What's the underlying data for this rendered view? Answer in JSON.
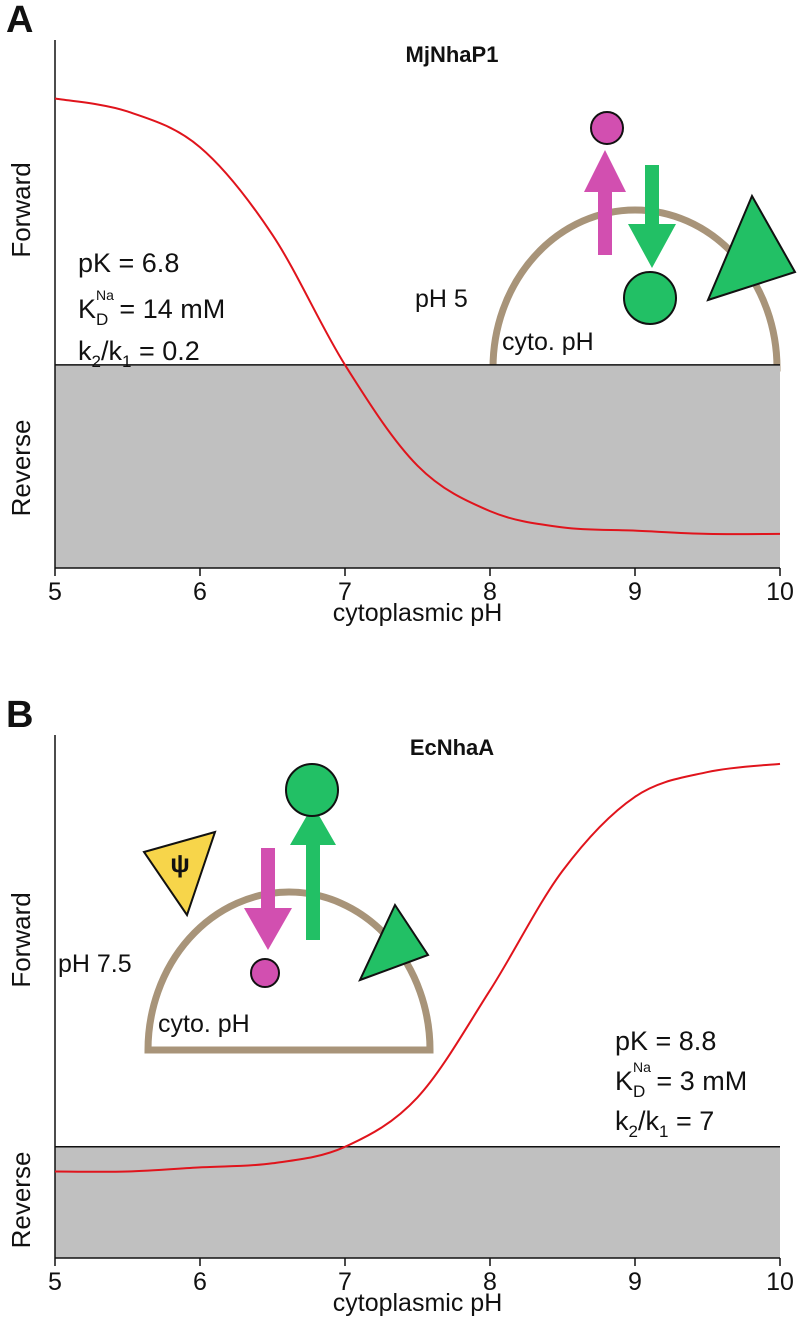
{
  "chart_data": [
    {
      "type": "line",
      "panel": "A",
      "title": "MjNhaP1",
      "x_label": "cytoplasmic pH",
      "y_labels": [
        "Forward",
        "Reverse"
      ],
      "x": [
        5,
        5.5,
        6,
        6.5,
        7,
        7.5,
        8,
        8.5,
        9,
        9.5,
        10
      ],
      "series": [
        {
          "color": "#e0141c",
          "values": [
            0.82,
            0.78,
            0.67,
            0.4,
            0,
            -0.31,
            -0.45,
            -0.5,
            -0.51,
            -0.52,
            -0.52
          ]
        }
      ],
      "xlim": [
        5,
        10
      ],
      "xticks": [
        5,
        6,
        7,
        8,
        9,
        10
      ],
      "ylim": [
        -0.625,
        1
      ],
      "reverse_fill": "#c0c0c0",
      "annotations": [
        [
          {
            "text": "pK = 6.8"
          }
        ],
        [
          {
            "text": "K"
          },
          {
            "sub": "D"
          },
          {
            "sup": "Na"
          },
          {
            "text": " = 14 mM"
          }
        ],
        [
          {
            "text": "k"
          },
          {
            "sub": "2"
          },
          {
            "text": "/k"
          },
          {
            "sub": "1"
          },
          {
            "text": " = 0.2"
          }
        ]
      ],
      "diagram_labels": [
        "pH 5",
        "cyto. pH"
      ]
    },
    {
      "type": "line",
      "panel": "B",
      "title": "EcNhaA",
      "x_label": "cytoplasmic pH",
      "y_labels": [
        "Forward",
        "Reverse"
      ],
      "x": [
        5,
        5.5,
        6,
        6.5,
        7,
        7.5,
        8,
        8.5,
        9,
        9.5,
        10
      ],
      "series": [
        {
          "color": "#e0141c",
          "values": [
            -0.06,
            -0.06,
            -0.05,
            -0.04,
            0,
            0.12,
            0.38,
            0.67,
            0.85,
            0.91,
            0.93
          ]
        }
      ],
      "xlim": [
        5,
        10
      ],
      "xticks": [
        5,
        6,
        7,
        8,
        9,
        10
      ],
      "ylim": [
        -0.27,
        1
      ],
      "reverse_fill": "#c0c0c0",
      "annotations": [
        [
          {
            "text": "pK = 8.8"
          }
        ],
        [
          {
            "text": "K"
          },
          {
            "sub": "D"
          },
          {
            "sup": "Na"
          },
          {
            "text": " = 3 mM"
          }
        ],
        [
          {
            "text": "k"
          },
          {
            "sub": "2"
          },
          {
            "text": "/k"
          },
          {
            "sub": "1"
          },
          {
            "text": " = 7"
          }
        ]
      ],
      "diagram_labels": [
        "pH 7.5",
        "cyto. pH",
        "ψ"
      ]
    }
  ]
}
